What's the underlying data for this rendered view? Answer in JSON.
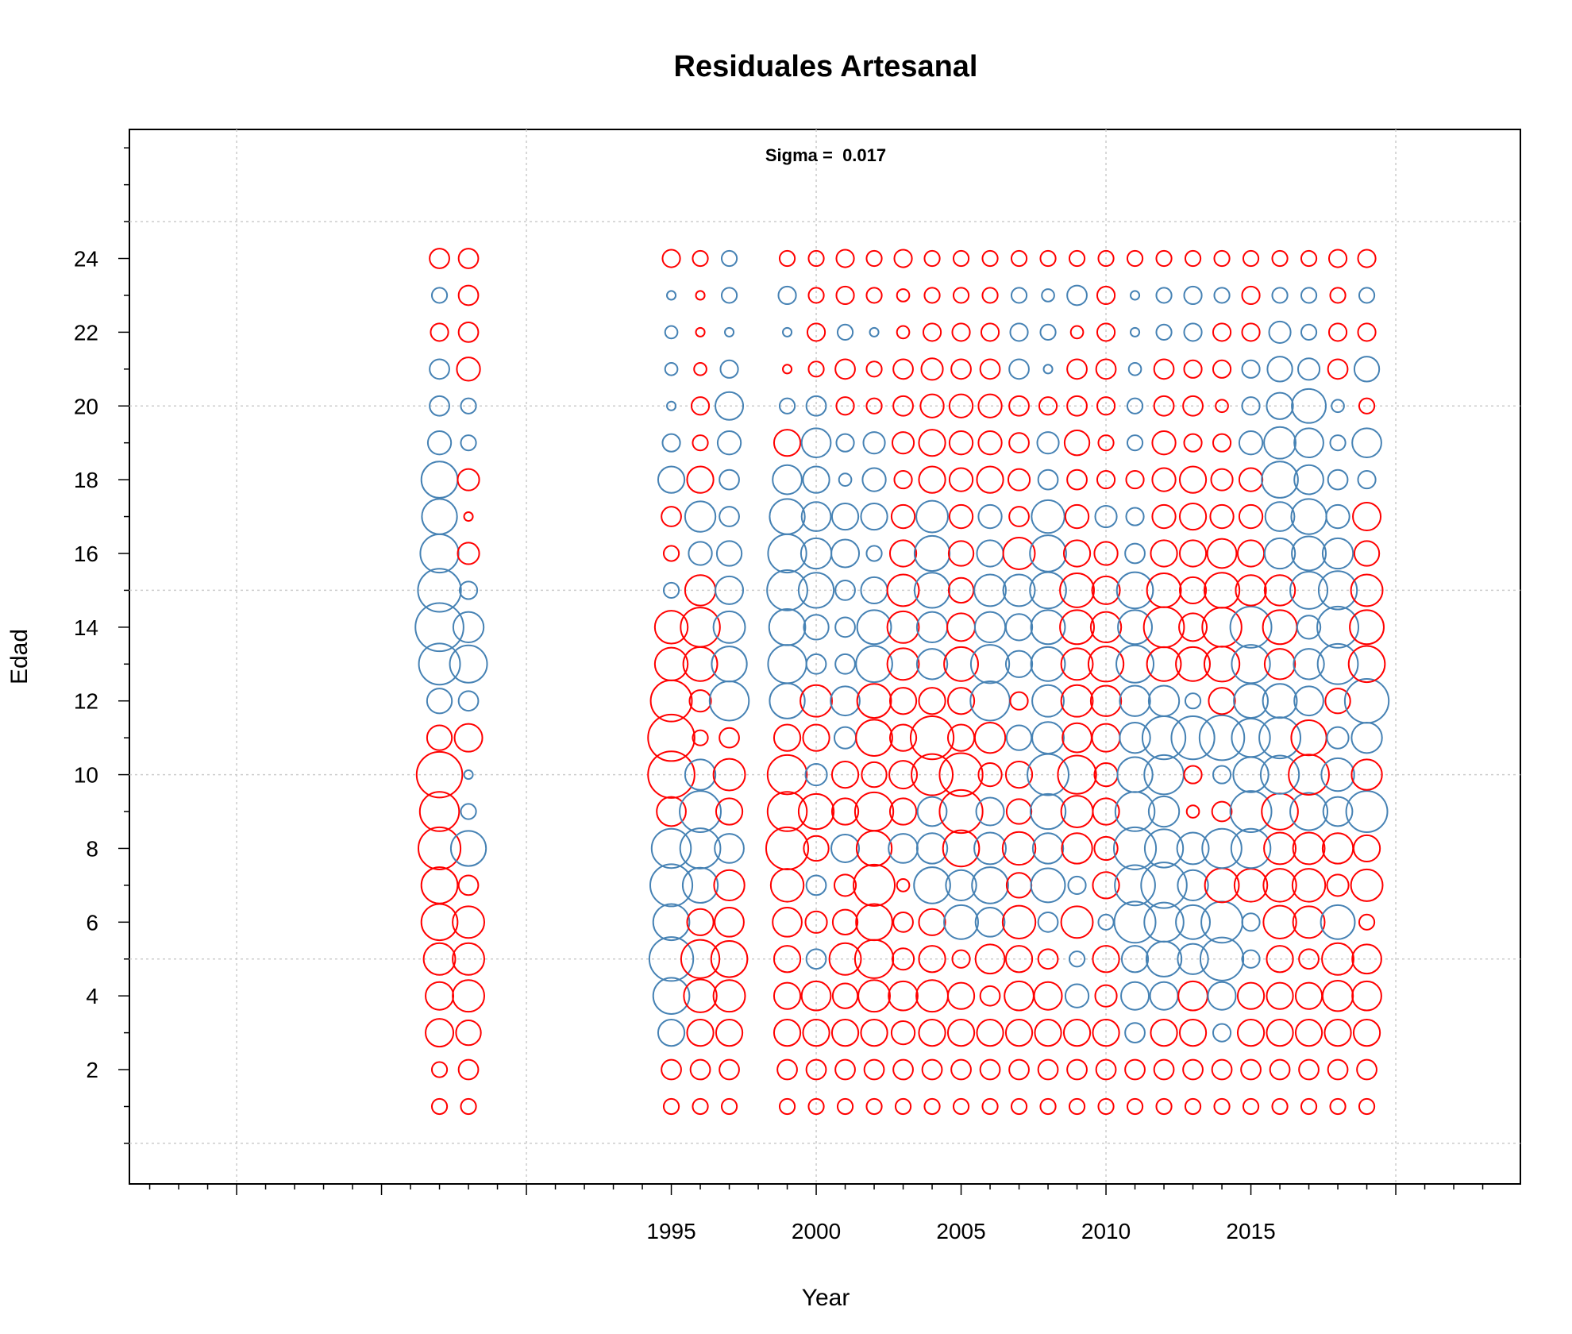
{
  "chart_data": {
    "type": "scatter",
    "title": "Residuales Artesanal",
    "xlabel": "Year",
    "ylabel": "Edad",
    "annotation": "Sigma =  0.017",
    "x_tick_labels": [
      1995,
      2000,
      2005,
      2010,
      2015
    ],
    "y_tick_labels": [
      2,
      4,
      6,
      8,
      10,
      12,
      14,
      16,
      18,
      20,
      22,
      24
    ],
    "xlim": [
      1976.3,
      2024.3
    ],
    "ylim": [
      -1.1,
      27.5
    ],
    "colors": {
      "positive": "#4682B4",
      "negative": "#FF0000"
    },
    "grid": true,
    "years": [
      1987,
      1988,
      1995,
      1996,
      1997,
      1999,
      2000,
      2001,
      2002,
      2003,
      2004,
      2005,
      2006,
      2007,
      2008,
      2009,
      2010,
      2011,
      2012,
      2013,
      2014,
      2015,
      2016,
      2017,
      2018,
      2019
    ],
    "ages": [
      1,
      2,
      3,
      4,
      5,
      6,
      7,
      8,
      9,
      10,
      11,
      12,
      13,
      14,
      15,
      16,
      17,
      18,
      19,
      20,
      21,
      22,
      23,
      24
    ],
    "residuals": [
      [
        -0.3,
        -0.3,
        -1.0,
        -1.0,
        -1.3,
        -1.7,
        -1.7,
        -2.3,
        -2.0,
        -2.7,
        -0.8,
        0.8,
        2.2,
        3.0,
        2.4,
        1.9,
        1.6,
        1.7,
        0.7,
        0.5,
        0.5,
        -0.4,
        0.3,
        -0.5
      ],
      [
        -0.3,
        -0.5,
        -0.8,
        -1.3,
        -1.3,
        -1.3,
        -0.5,
        1.6,
        0.3,
        0.1,
        -1.0,
        0.5,
        1.8,
        1.2,
        0.4,
        -0.6,
        -0.1,
        -0.6,
        0.3,
        0.3,
        -0.7,
        -0.5,
        -0.5,
        -0.5
      ],
      [
        -0.3,
        -0.5,
        0.9,
        1.7,
        2.5,
        1.7,
        2.3,
        2.0,
        -1.1,
        -2.8,
        -2.8,
        -2.2,
        -1.4,
        -1.4,
        0.3,
        -0.3,
        -0.5,
        0.9,
        0.4,
        0.1,
        0.2,
        0.2,
        0.1,
        -0.4
      ],
      [
        -0.3,
        -0.5,
        -0.9,
        -1.4,
        -1.9,
        -0.9,
        1.6,
        2.1,
        2.2,
        1.2,
        -0.3,
        -0.6,
        -1.5,
        -2.0,
        -1.2,
        0.7,
        1.2,
        -0.9,
        -0.3,
        -0.4,
        -0.2,
        -0.1,
        -0.1,
        -0.3
      ],
      [
        -0.3,
        -0.5,
        -0.9,
        -1.3,
        -1.7,
        -1.1,
        -1.2,
        1.1,
        -0.9,
        -1.3,
        -0.5,
        2.0,
        1.6,
        1.3,
        1.0,
        0.8,
        0.5,
        0.5,
        0.7,
        1.0,
        0.4,
        0.1,
        0.3,
        0.3
      ],
      [
        -0.3,
        -0.5,
        -0.9,
        -0.9,
        -0.9,
        -1.1,
        -1.4,
        -2.3,
        -2.0,
        -2.0,
        -0.9,
        1.6,
        1.9,
        1.7,
        2.1,
        1.9,
        1.6,
        1.1,
        -0.9,
        0.3,
        -0.1,
        0.1,
        0.4,
        -0.3
      ],
      [
        -0.3,
        -0.5,
        -0.9,
        -1.1,
        0.5,
        -0.6,
        0.5,
        -0.8,
        -1.6,
        0.6,
        -0.9,
        -1.3,
        0.5,
        0.8,
        1.6,
        1.2,
        1.1,
        0.9,
        1.1,
        0.5,
        -0.3,
        -0.4,
        -0.3,
        -0.3
      ],
      [
        -0.3,
        -0.5,
        -0.9,
        -0.8,
        -1.3,
        -0.8,
        -0.6,
        1.0,
        -0.9,
        -0.9,
        0.6,
        1.1,
        0.5,
        0.5,
        0.5,
        1.0,
        0.9,
        0.2,
        0.4,
        -0.4,
        -0.5,
        0.3,
        -0.4,
        -0.4
      ],
      [
        -0.3,
        -0.5,
        -0.9,
        -1.3,
        -1.9,
        -1.7,
        -2.2,
        -1.6,
        -1.9,
        -0.8,
        -1.7,
        -1.5,
        1.7,
        1.5,
        0.9,
        0.3,
        0.9,
        0.7,
        0.6,
        -0.3,
        -0.3,
        0.1,
        -0.3,
        -0.3
      ],
      [
        -0.3,
        -0.5,
        -0.7,
        -1.1,
        -0.6,
        -0.5,
        -0.2,
        1.1,
        -0.9,
        -1.0,
        -0.9,
        -0.9,
        -1.3,
        -1.3,
        -1.3,
        -0.9,
        -0.7,
        -0.4,
        -0.6,
        -0.5,
        -0.5,
        -0.2,
        -0.2,
        -0.4
      ],
      [
        -0.3,
        -0.5,
        -0.9,
        -1.3,
        -0.9,
        -0.9,
        1.7,
        1.2,
        1.1,
        -2.2,
        -2.4,
        -0.9,
        1.2,
        1.2,
        1.6,
        1.6,
        1.3,
        -0.9,
        -0.9,
        -0.7,
        -0.6,
        -0.4,
        -0.3,
        -0.3
      ],
      [
        -0.3,
        -0.5,
        -0.9,
        -0.9,
        -0.4,
        1.5,
        1.2,
        -1.7,
        -2.4,
        -2.4,
        -0.9,
        -0.9,
        -1.5,
        -1.0,
        -0.8,
        -0.8,
        -0.7,
        -0.7,
        -0.7,
        -0.7,
        -0.5,
        -0.4,
        -0.3,
        -0.3
      ],
      [
        -0.3,
        -0.5,
        -0.9,
        -0.5,
        -1.1,
        1.1,
        1.7,
        1.3,
        1.0,
        -0.7,
        -1.2,
        2.0,
        1.9,
        1.2,
        1.3,
        0.9,
        0.7,
        -0.9,
        -0.7,
        -0.7,
        -0.5,
        -0.4,
        -0.3,
        -0.3
      ],
      [
        -0.3,
        -0.5,
        -0.9,
        -1.1,
        -0.9,
        -1.4,
        -0.8,
        -1.4,
        -0.8,
        -0.9,
        0.8,
        -0.4,
        0.9,
        0.9,
        1.3,
        -1.3,
        -0.5,
        -0.6,
        -0.5,
        -0.5,
        0.5,
        0.4,
        0.3,
        -0.3
      ],
      [
        -0.3,
        -0.5,
        -0.9,
        -1.0,
        -0.5,
        0.5,
        1.5,
        1.2,
        1.6,
        2.2,
        1.3,
        1.3,
        1.5,
        1.5,
        1.7,
        1.7,
        1.4,
        0.5,
        0.6,
        -0.4,
        0.1,
        0.3,
        0.2,
        -0.3
      ],
      [
        -0.3,
        -0.5,
        -0.9,
        0.7,
        0.3,
        -1.3,
        0.4,
        -1.2,
        -1.3,
        -1.9,
        -1.1,
        -1.3,
        -1.3,
        -1.5,
        -1.5,
        -0.9,
        -0.7,
        -0.5,
        -0.8,
        -0.5,
        -0.5,
        -0.2,
        0.5,
        -0.3
      ],
      [
        -0.3,
        -0.5,
        -0.9,
        -0.6,
        -0.9,
        0.3,
        -0.9,
        -0.7,
        -0.9,
        -0.7,
        -1.0,
        -1.2,
        -1.6,
        -1.2,
        -1.0,
        -0.7,
        0.6,
        -0.4,
        -0.3,
        -0.4,
        -0.5,
        -0.4,
        -0.4,
        -0.3
      ],
      [
        -0.3,
        -0.5,
        0.5,
        1.0,
        0.9,
        2.2,
        2.1,
        2.3,
        2.0,
        1.6,
        1.2,
        1.2,
        1.8,
        1.5,
        1.7,
        0.5,
        0.4,
        -0.4,
        0.3,
        0.3,
        0.2,
        0.1,
        0.1,
        -0.3
      ],
      [
        -0.3,
        -0.5,
        -0.9,
        1.0,
        1.6,
        2.0,
        2.7,
        1.9,
        1.2,
        2.0,
        2.4,
        1.2,
        -1.5,
        -2.1,
        -1.5,
        -0.9,
        -0.7,
        -0.7,
        -0.7,
        -0.5,
        -0.5,
        0.3,
        0.3,
        -0.3
      ],
      [
        -0.3,
        -0.5,
        -0.9,
        -1.1,
        1.2,
        1.5,
        1.2,
        1.3,
        -0.2,
        -0.4,
        2.4,
        0.3,
        -1.5,
        -1.0,
        -0.9,
        -0.9,
        -0.9,
        -0.9,
        -0.4,
        -0.5,
        -0.4,
        0.4,
        0.4,
        -0.3
      ],
      [
        -0.3,
        -0.5,
        0.4,
        1.0,
        2.4,
        2.2,
        -1.5,
        2.0,
        -0.5,
        0.4,
        2.6,
        -0.9,
        -1.6,
        -2.0,
        -1.6,
        -1.1,
        -0.7,
        -0.6,
        -0.4,
        -0.2,
        -0.4,
        -0.4,
        0.3,
        -0.3
      ],
      [
        -0.3,
        -0.5,
        -0.9,
        -0.9,
        0.4,
        0.4,
        -1.4,
        2.0,
        2.2,
        1.6,
        1.9,
        1.5,
        1.9,
        2.2,
        -1.2,
        -0.9,
        -0.7,
        -0.7,
        0.7,
        0.4,
        0.4,
        -0.4,
        -0.4,
        -0.3
      ],
      [
        -0.3,
        -0.5,
        -0.9,
        -0.9,
        -0.9,
        -1.4,
        -1.4,
        -1.3,
        -1.7,
        1.9,
        2.2,
        1.5,
        -1.2,
        -1.5,
        -1.2,
        1.2,
        1.1,
        1.7,
        1.3,
        0.9,
        0.8,
        0.6,
        0.3,
        -0.3
      ],
      [
        -0.3,
        -0.5,
        -0.9,
        -0.9,
        -0.5,
        -1.3,
        -1.4,
        -1.3,
        1.8,
        -2.1,
        -1.6,
        1.1,
        1.2,
        0.7,
        1.8,
        1.5,
        1.6,
        1.1,
        1.1,
        1.5,
        0.6,
        0.3,
        0.3,
        -0.3
      ],
      [
        -0.3,
        -0.5,
        -0.9,
        -1.2,
        -1.3,
        1.5,
        -0.6,
        -1.2,
        1.1,
        1.4,
        0.6,
        -0.8,
        2.1,
        2.2,
        1.9,
        1.2,
        0.7,
        0.5,
        0.3,
        0.2,
        -0.5,
        -0.4,
        -0.3,
        -0.4
      ],
      [
        -0.3,
        -0.5,
        -0.9,
        -1.1,
        -1.1,
        -0.3,
        -1.3,
        -0.9,
        2.2,
        -1.2,
        1.2,
        2.5,
        -1.7,
        -1.5,
        -1.3,
        -0.8,
        -1.0,
        0.4,
        1.1,
        -0.3,
        0.8,
        -0.4,
        0.3,
        -0.4
      ]
    ]
  }
}
